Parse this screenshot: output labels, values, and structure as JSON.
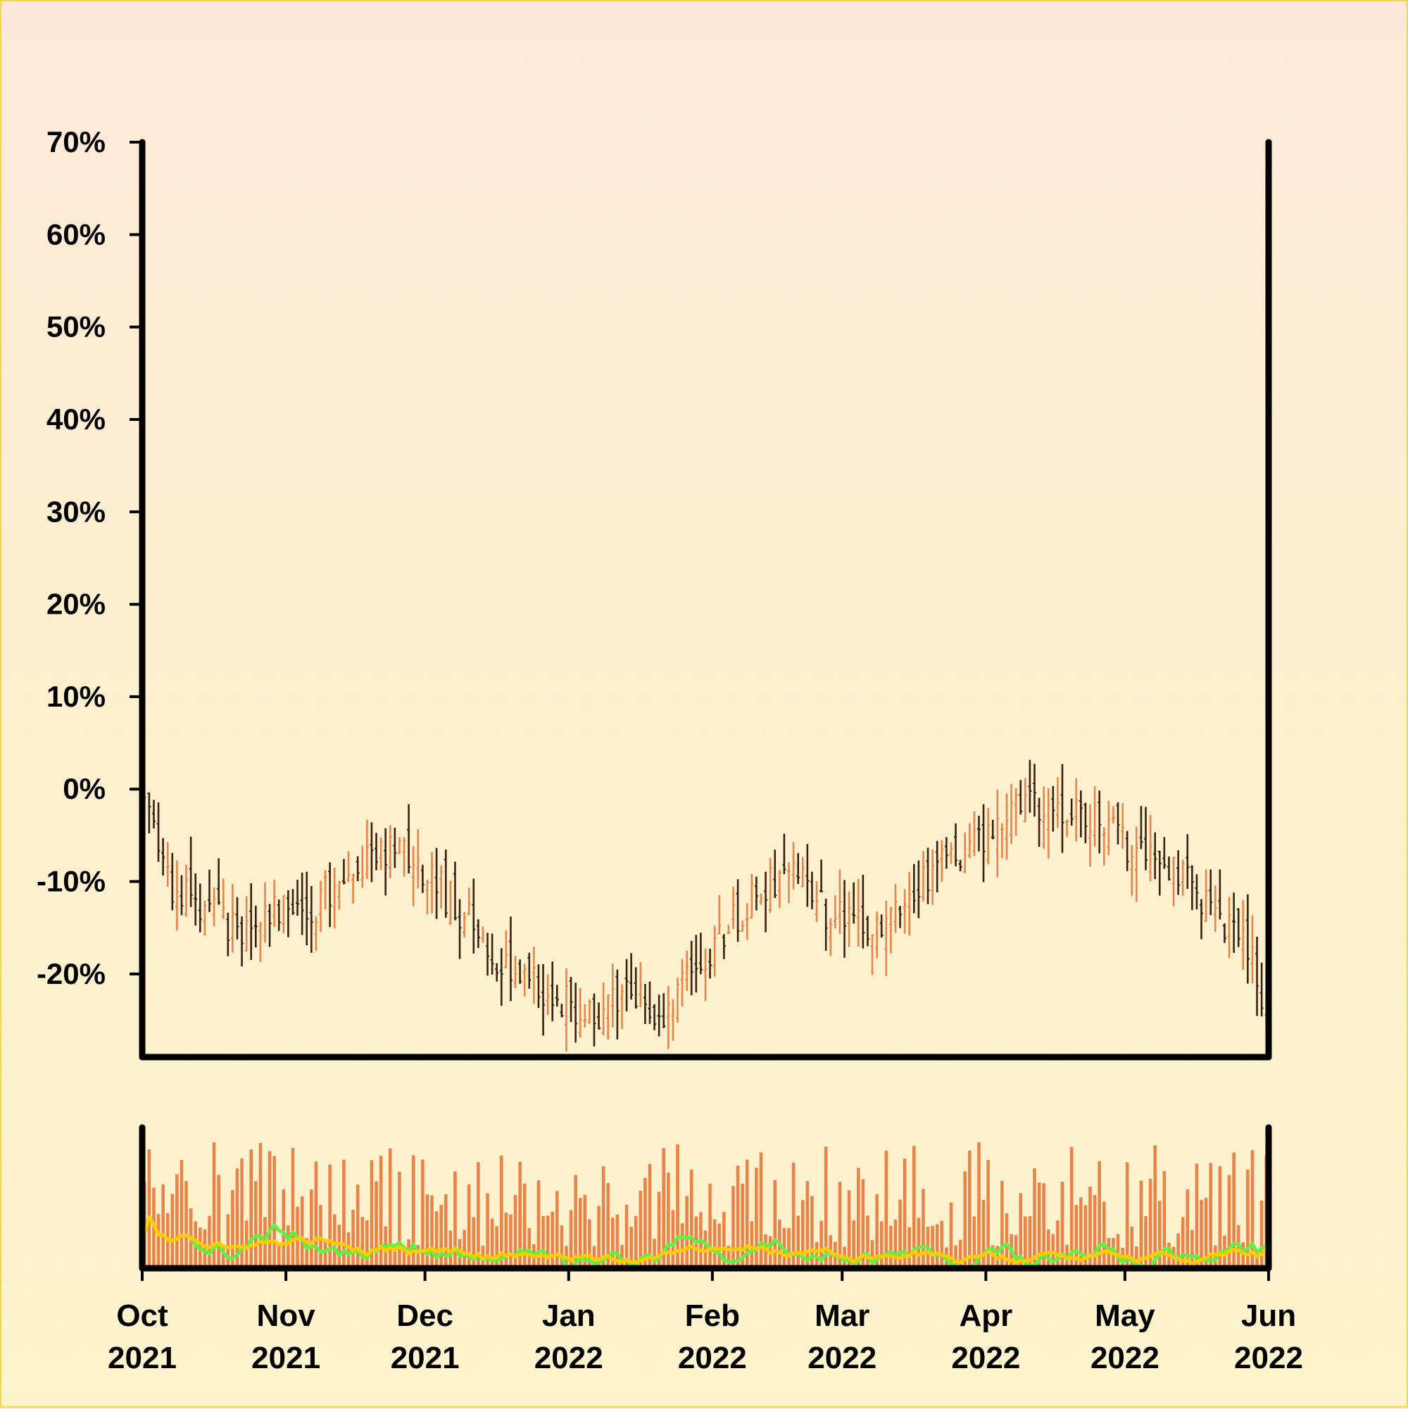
{
  "chart_data": [
    {
      "type": "ohlc",
      "title": "",
      "xlabel": "",
      "ylabel": "",
      "y_unit": "%",
      "ylim": [
        -29,
        70
      ],
      "y_ticks": [
        70,
        60,
        50,
        40,
        30,
        20,
        10,
        0,
        -10,
        -20
      ],
      "y_tick_labels": [
        "70%",
        "60%",
        "50%",
        "40%",
        "30%",
        "20%",
        "10%",
        "0%",
        "-10%",
        "-20%"
      ],
      "x_range": [
        "2021-10-01",
        "2022-06-01"
      ],
      "x_ticks": [
        {
          "month": "Oct",
          "year": "2021"
        },
        {
          "month": "Nov",
          "year": "2021"
        },
        {
          "month": "Dec",
          "year": "2021"
        },
        {
          "month": "Jan",
          "year": "2022"
        },
        {
          "month": "Feb",
          "year": "2022"
        },
        {
          "month": "Mar",
          "year": "2022"
        },
        {
          "month": "Apr",
          "year": "2022"
        },
        {
          "month": "May",
          "year": "2022"
        },
        {
          "month": "Jun",
          "year": "2022"
        }
      ],
      "trend_close_pct": [
        {
          "date": "2021-10-01",
          "value": 0
        },
        {
          "date": "2021-10-04",
          "value": -5
        },
        {
          "date": "2021-10-08",
          "value": -11
        },
        {
          "date": "2021-10-15",
          "value": -13
        },
        {
          "date": "2021-10-22",
          "value": -16
        },
        {
          "date": "2021-10-29",
          "value": -13
        },
        {
          "date": "2021-11-05",
          "value": -14
        },
        {
          "date": "2021-11-12",
          "value": -10
        },
        {
          "date": "2021-11-19",
          "value": -8
        },
        {
          "date": "2021-11-26",
          "value": -6
        },
        {
          "date": "2021-12-03",
          "value": -10
        },
        {
          "date": "2021-12-10",
          "value": -14
        },
        {
          "date": "2021-12-17",
          "value": -19
        },
        {
          "date": "2021-12-24",
          "value": -21
        },
        {
          "date": "2021-12-31",
          "value": -23
        },
        {
          "date": "2022-01-07",
          "value": -25
        },
        {
          "date": "2022-01-14",
          "value": -21
        },
        {
          "date": "2022-01-21",
          "value": -25
        },
        {
          "date": "2022-01-28",
          "value": -20
        },
        {
          "date": "2022-02-04",
          "value": -15
        },
        {
          "date": "2022-02-11",
          "value": -11
        },
        {
          "date": "2022-02-18",
          "value": -9
        },
        {
          "date": "2022-02-25",
          "value": -13
        },
        {
          "date": "2022-03-04",
          "value": -15
        },
        {
          "date": "2022-03-11",
          "value": -14
        },
        {
          "date": "2022-03-18",
          "value": -10
        },
        {
          "date": "2022-03-25",
          "value": -7
        },
        {
          "date": "2022-04-01",
          "value": -5
        },
        {
          "date": "2022-04-08",
          "value": -1
        },
        {
          "date": "2022-04-15",
          "value": -3
        },
        {
          "date": "2022-04-22",
          "value": -3
        },
        {
          "date": "2022-04-29",
          "value": -5
        },
        {
          "date": "2022-05-06",
          "value": -8
        },
        {
          "date": "2022-05-13",
          "value": -9
        },
        {
          "date": "2022-05-20",
          "value": -14
        },
        {
          "date": "2022-05-27",
          "value": -17
        },
        {
          "date": "2022-06-01",
          "value": -24
        }
      ],
      "colors": {
        "up": "#e8844a",
        "down": "#3a2010",
        "volume": "#e8844a",
        "ma_fast": "#66ee44",
        "ma_slow": "#ffcc00",
        "axis": "#000000"
      },
      "volume_panel": {
        "series": [
          {
            "type": "bar",
            "color": "#e8844a"
          },
          {
            "type": "line",
            "color": "#66ee44"
          },
          {
            "type": "line",
            "color": "#ffcc00"
          }
        ]
      }
    }
  ]
}
